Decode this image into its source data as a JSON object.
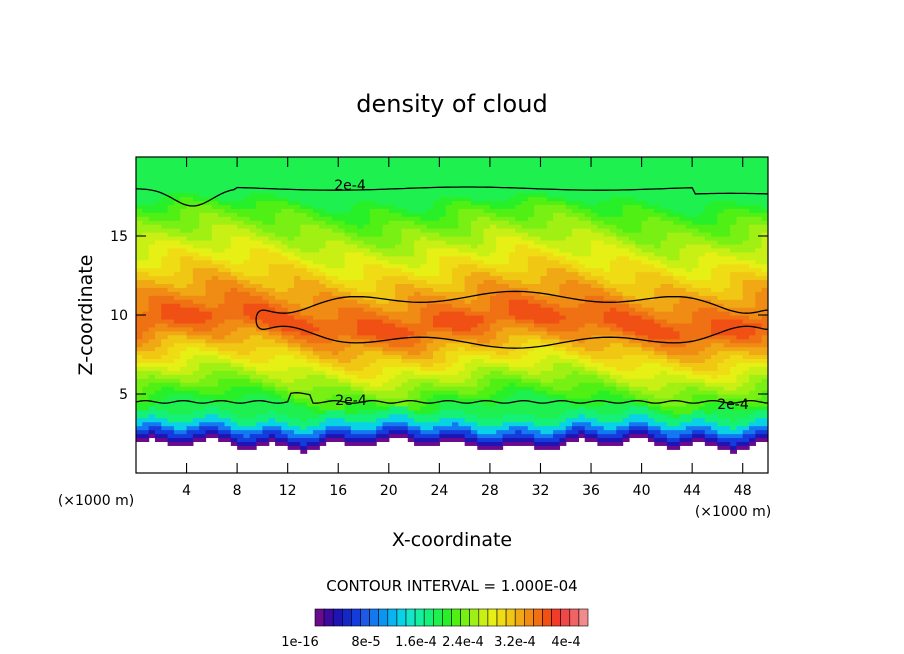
{
  "chart_data": {
    "type": "heatmap",
    "title": "density of cloud",
    "xlabel": "X-coordinate",
    "ylabel": "Z-coordinate",
    "x_unit_left": "(×1000 m)",
    "x_unit_right": "(×1000 m)",
    "xlim": [
      0,
      50
    ],
    "ylim": [
      0,
      20
    ],
    "x_ticks": [
      4,
      8,
      12,
      16,
      20,
      24,
      28,
      32,
      36,
      40,
      44,
      48
    ],
    "x_tick_labels": [
      "4",
      "8",
      "12",
      "16",
      "20",
      "24",
      "28",
      "32",
      "36",
      "40",
      "44",
      "48"
    ],
    "y_ticks": [
      5,
      10,
      15
    ],
    "y_tick_labels": [
      "5",
      "10",
      "15"
    ],
    "contour_interval_text": "CONTOUR INTERVAL = 1.000E-04",
    "contour_labels": [
      "2e-4",
      "2e-4",
      "2e-4"
    ],
    "colorbar_labels": [
      "1e-16",
      "8e-5",
      "1.6e-4",
      "2.4e-4",
      "3.2e-4",
      "4e-4"
    ],
    "colorbar_colors": [
      "#6a0a8c",
      "#3c0aa0",
      "#1e14b4",
      "#1428c8",
      "#143cdc",
      "#1e5ae6",
      "#1478f0",
      "#0a96f0",
      "#0ab4f0",
      "#0ad2e6",
      "#14e6c8",
      "#14f0a0",
      "#14f078",
      "#1ef050",
      "#28f028",
      "#50f014",
      "#78f014",
      "#a0f014",
      "#c8f014",
      "#e6f014",
      "#f0dc14",
      "#f0c814",
      "#f0a814",
      "#f08c14",
      "#f07014",
      "#f05014",
      "#f03c28",
      "#f04848",
      "#f06464",
      "#f08c8c"
    ],
    "levels": [
      0.5,
      1.5,
      2.0,
      2.5,
      3.0,
      3.5,
      4.0,
      5.0,
      5.5,
      6.0,
      6.5,
      7.0,
      7.5,
      8.0,
      8.5,
      9.0,
      10.0,
      11.0,
      11.8,
      12.5,
      13.5,
      14.5,
      15.3,
      16.0,
      16.6,
      17.2,
      17.8,
      18.4
    ],
    "colors": {
      "frame": "#000000"
    }
  }
}
